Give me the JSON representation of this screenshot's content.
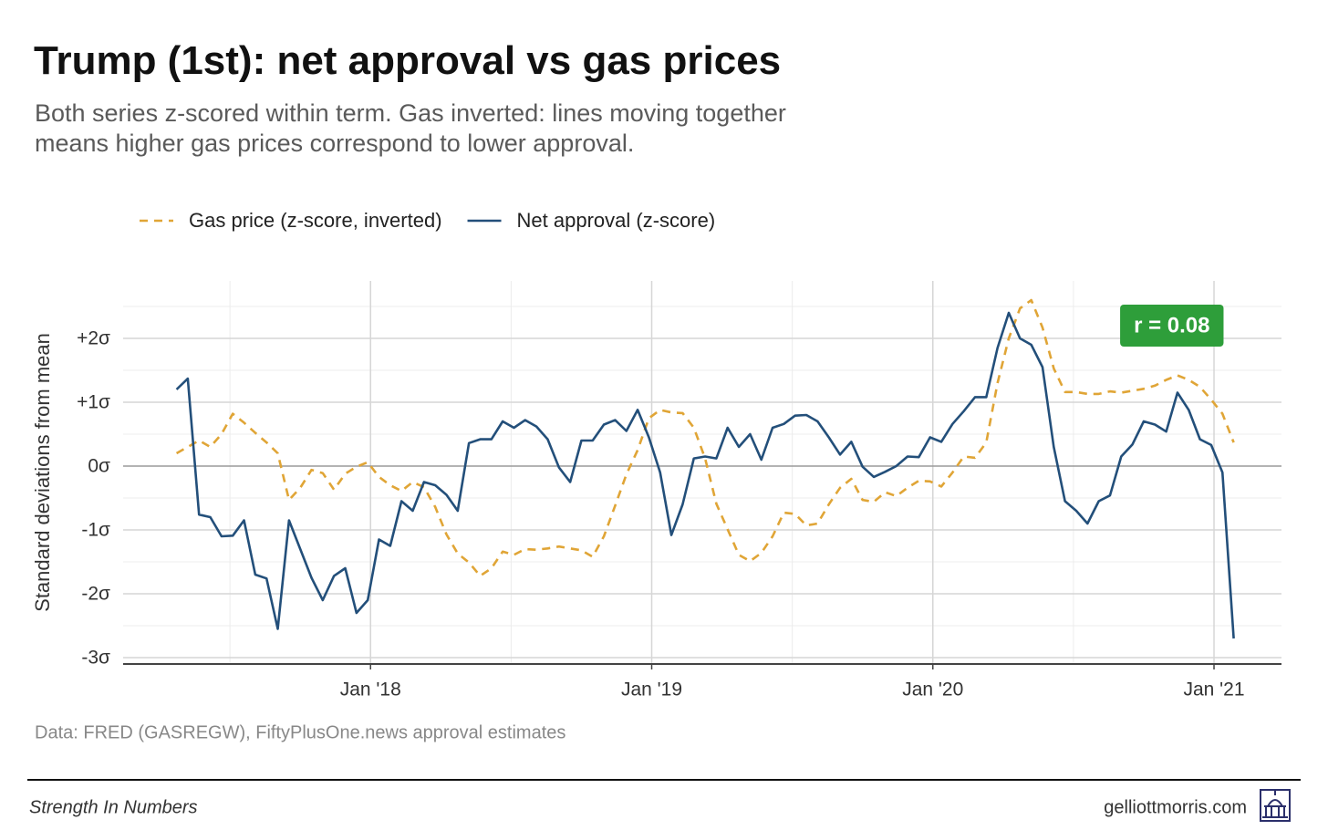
{
  "chart_data": {
    "type": "line",
    "title": "Trump (1st): net approval vs gas prices",
    "subtitle": "Both series z-scored within term. Gas inverted: lines moving together means higher gas prices correspond to lower approval.",
    "ylabel": "Standard deviations from mean",
    "source": "Data: FRED (GASREGW), FiftyPlusOne.news approval estimates",
    "legend": "top",
    "grid": true,
    "xlim": [
      2017.12,
      2021.24
    ],
    "ylim": [
      -3.1,
      2.9
    ],
    "xticks": [
      {
        "value": 2018,
        "label": "Jan '18"
      },
      {
        "value": 2019,
        "label": "Jan '19"
      },
      {
        "value": 2020,
        "label": "Jan '20"
      },
      {
        "value": 2021,
        "label": "Jan '21"
      }
    ],
    "minor_xticks": [
      2017.5,
      2018.5,
      2019.5,
      2020.5
    ],
    "yticks": [
      {
        "value": -3,
        "label": "-3σ"
      },
      {
        "value": -2,
        "label": "-2σ"
      },
      {
        "value": -1,
        "label": "-1σ"
      },
      {
        "value": 0,
        "label": "0σ"
      },
      {
        "value": 1,
        "label": "+1σ"
      },
      {
        "value": 2,
        "label": "+2σ"
      }
    ],
    "minor_yticks": [
      -2.5,
      -1.5,
      -0.5,
      0.5,
      1.5,
      2.5
    ],
    "annotations": [
      {
        "text": "r = 0.08",
        "x": 2020.85,
        "y": 2.2,
        "color": "#2e9e3a"
      }
    ],
    "x": [
      2017.31,
      2017.35,
      2017.39,
      2017.43,
      2017.47,
      2017.51,
      2017.55,
      2017.59,
      2017.63,
      2017.67,
      2017.71,
      2017.75,
      2017.79,
      2017.83,
      2017.87,
      2017.91,
      2017.95,
      2017.99,
      2018.03,
      2018.07,
      2018.11,
      2018.15,
      2018.19,
      2018.23,
      2018.27,
      2018.31,
      2018.35,
      2018.39,
      2018.43,
      2018.47,
      2018.51,
      2018.55,
      2018.59,
      2018.63,
      2018.67,
      2018.71,
      2018.75,
      2018.79,
      2018.83,
      2018.87,
      2018.91,
      2018.95,
      2018.99,
      2019.03,
      2019.07,
      2019.11,
      2019.15,
      2019.19,
      2019.23,
      2019.27,
      2019.31,
      2019.35,
      2019.39,
      2019.43,
      2019.47,
      2019.51,
      2019.55,
      2019.59,
      2019.63,
      2019.67,
      2019.71,
      2019.75,
      2019.79,
      2019.83,
      2019.87,
      2019.91,
      2019.95,
      2019.99,
      2020.03,
      2020.07,
      2020.11,
      2020.15,
      2020.19,
      2020.23,
      2020.27,
      2020.31,
      2020.35,
      2020.39,
      2020.43,
      2020.47,
      2020.51,
      2020.55,
      2020.59,
      2020.63,
      2020.67,
      2020.71,
      2020.75,
      2020.79,
      2020.83,
      2020.87,
      2020.91,
      2020.95,
      2020.99,
      2021.03,
      2021.07
    ],
    "series": [
      {
        "name": "Gas price (z-score, inverted)",
        "color": "#e0a536",
        "style": "dashed",
        "values": [
          0.2,
          0.3,
          0.4,
          0.3,
          0.5,
          0.82,
          0.68,
          0.52,
          0.37,
          0.2,
          -0.53,
          -0.34,
          -0.06,
          -0.11,
          -0.37,
          -0.12,
          -0.01,
          0.06,
          -0.17,
          -0.3,
          -0.39,
          -0.25,
          -0.33,
          -0.64,
          -1.07,
          -1.37,
          -1.51,
          -1.72,
          -1.6,
          -1.34,
          -1.39,
          -1.3,
          -1.31,
          -1.29,
          -1.26,
          -1.29,
          -1.32,
          -1.42,
          -1.1,
          -0.62,
          -0.13,
          0.25,
          0.75,
          0.88,
          0.84,
          0.83,
          0.6,
          0.12,
          -0.59,
          -0.99,
          -1.39,
          -1.49,
          -1.36,
          -1.1,
          -0.73,
          -0.75,
          -0.93,
          -0.9,
          -0.6,
          -0.34,
          -0.2,
          -0.53,
          -0.56,
          -0.41,
          -0.47,
          -0.34,
          -0.23,
          -0.24,
          -0.32,
          -0.1,
          0.15,
          0.13,
          0.37,
          1.3,
          2.0,
          2.47,
          2.6,
          2.17,
          1.53,
          1.16,
          1.16,
          1.13,
          1.13,
          1.17,
          1.15,
          1.18,
          1.21,
          1.26,
          1.35,
          1.42,
          1.35,
          1.24,
          1.04,
          0.82,
          0.37
        ]
      },
      {
        "name": "Net approval (z-score)",
        "color": "#234f7a",
        "style": "solid",
        "values": [
          1.2,
          1.37,
          -0.76,
          -0.8,
          -1.1,
          -1.09,
          -0.85,
          -1.7,
          -1.76,
          -2.55,
          -0.85,
          -1.3,
          -1.75,
          -2.1,
          -1.72,
          -1.6,
          -2.3,
          -2.1,
          -1.15,
          -1.25,
          -0.55,
          -0.7,
          -0.25,
          -0.3,
          -0.45,
          -0.7,
          0.36,
          0.42,
          0.42,
          0.7,
          0.6,
          0.72,
          0.62,
          0.42,
          -0.02,
          -0.25,
          0.4,
          0.4,
          0.65,
          0.72,
          0.55,
          0.88,
          0.45,
          -0.1,
          -1.08,
          -0.6,
          0.12,
          0.15,
          0.12,
          0.6,
          0.3,
          0.5,
          0.1,
          0.6,
          0.66,
          0.79,
          0.8,
          0.7,
          0.45,
          0.18,
          0.38,
          -0.01,
          -0.17,
          -0.09,
          0.0,
          0.15,
          0.14,
          0.45,
          0.38,
          0.66,
          0.86,
          1.08,
          1.08,
          1.85,
          2.4,
          2.0,
          1.9,
          1.55,
          0.3,
          -0.55,
          -0.7,
          -0.9,
          -0.55,
          -0.46,
          0.15,
          0.34,
          0.7,
          0.65,
          0.54,
          1.15,
          0.88,
          0.42,
          0.33,
          -0.1,
          -2.7
        ]
      }
    ]
  },
  "footer": {
    "left": "Strength In Numbers",
    "right": "gelliottmorris.com"
  }
}
